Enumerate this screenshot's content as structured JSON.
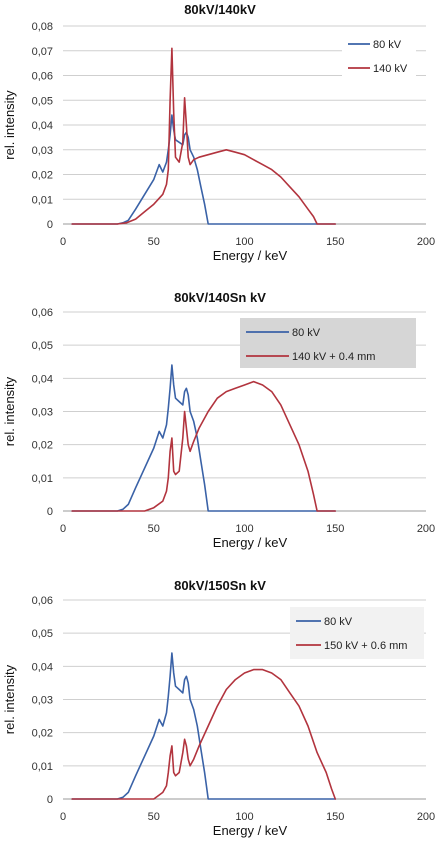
{
  "colors": {
    "series_80": "#3a62a7",
    "series_high": "#b2343e",
    "grid": "#cfcfcf"
  },
  "chart_data": [
    {
      "type": "line",
      "title": "80kV/140kV",
      "xlabel": "Energy / keV",
      "ylabel": "rel. intensity",
      "xlim": [
        0,
        200
      ],
      "ylim": [
        0,
        0.08
      ],
      "x_ticks": [
        "0",
        "50",
        "100",
        "150",
        "200"
      ],
      "y_ticks": [
        "0",
        "0,01",
        "0,02",
        "0,03",
        "0,04",
        "0,05",
        "0,06",
        "0,07",
        "0,08"
      ],
      "legend_position": "top-right",
      "legend_background": "#ffffff",
      "series": [
        {
          "name": "80 kV",
          "color": "#3a62a7",
          "x": [
            5,
            30,
            33,
            36,
            40,
            45,
            50,
            53,
            55,
            57,
            58,
            59,
            60,
            61,
            62,
            64,
            66,
            67,
            68,
            69,
            70,
            72,
            74,
            76,
            78,
            79,
            80,
            85,
            100,
            150
          ],
          "y": [
            0,
            0,
            0.0005,
            0.0015,
            0.006,
            0.012,
            0.018,
            0.024,
            0.021,
            0.025,
            0.03,
            0.036,
            0.044,
            0.038,
            0.034,
            0.033,
            0.032,
            0.036,
            0.037,
            0.035,
            0.03,
            0.027,
            0.022,
            0.015,
            0.008,
            0.004,
            0,
            0,
            0,
            0
          ]
        },
        {
          "name": "140 kV",
          "color": "#b2343e",
          "x": [
            5,
            30,
            35,
            40,
            45,
            50,
            55,
            57,
            58,
            59,
            60,
            61,
            62,
            64,
            66,
            67,
            68,
            69,
            70,
            72,
            75,
            80,
            85,
            90,
            95,
            100,
            105,
            110,
            115,
            120,
            125,
            130,
            135,
            138,
            140,
            145,
            150
          ],
          "y": [
            0,
            0,
            0.0005,
            0.002,
            0.005,
            0.008,
            0.012,
            0.016,
            0.022,
            0.05,
            0.071,
            0.045,
            0.027,
            0.025,
            0.033,
            0.051,
            0.04,
            0.027,
            0.024,
            0.026,
            0.027,
            0.028,
            0.029,
            0.03,
            0.029,
            0.028,
            0.026,
            0.024,
            0.022,
            0.019,
            0.015,
            0.011,
            0.006,
            0.003,
            0,
            0,
            0
          ]
        }
      ]
    },
    {
      "type": "line",
      "title": "80kV/140Sn kV",
      "xlabel": "Energy / keV",
      "ylabel": "rel. intensity",
      "xlim": [
        0,
        200
      ],
      "ylim": [
        0,
        0.06
      ],
      "x_ticks": [
        "0",
        "50",
        "100",
        "150",
        "200"
      ],
      "y_ticks": [
        "0",
        "0,01",
        "0,02",
        "0,03",
        "0,04",
        "0,05",
        "0,06"
      ],
      "legend_position": "top-right",
      "legend_background": "#d6d6d6",
      "series": [
        {
          "name": "80 kV",
          "color": "#3a62a7",
          "x": [
            5,
            30,
            33,
            36,
            40,
            45,
            50,
            53,
            55,
            57,
            58,
            59,
            60,
            61,
            62,
            64,
            66,
            67,
            68,
            69,
            70,
            72,
            74,
            76,
            78,
            79,
            80,
            85,
            100,
            150
          ],
          "y": [
            0,
            0,
            0.0005,
            0.002,
            0.007,
            0.013,
            0.019,
            0.024,
            0.022,
            0.026,
            0.031,
            0.037,
            0.044,
            0.038,
            0.034,
            0.033,
            0.032,
            0.036,
            0.037,
            0.035,
            0.03,
            0.027,
            0.022,
            0.015,
            0.008,
            0.004,
            0,
            0,
            0,
            0
          ]
        },
        {
          "name": "140 kV + 0.4 mm",
          "color": "#b2343e",
          "x": [
            5,
            45,
            50,
            55,
            57,
            58,
            59,
            60,
            61,
            62,
            64,
            66,
            67,
            68,
            69,
            70,
            72,
            75,
            80,
            85,
            90,
            95,
            100,
            105,
            110,
            115,
            120,
            125,
            130,
            135,
            138,
            140,
            145,
            150
          ],
          "y": [
            0,
            0,
            0.001,
            0.003,
            0.006,
            0.01,
            0.018,
            0.022,
            0.012,
            0.011,
            0.012,
            0.022,
            0.03,
            0.025,
            0.02,
            0.018,
            0.021,
            0.025,
            0.03,
            0.034,
            0.036,
            0.037,
            0.038,
            0.039,
            0.038,
            0.036,
            0.032,
            0.026,
            0.02,
            0.012,
            0.005,
            0,
            0,
            0
          ]
        }
      ]
    },
    {
      "type": "line",
      "title": "80kV/150Sn kV",
      "xlabel": "Energy / keV",
      "ylabel": "rel. intensity",
      "xlim": [
        0,
        200
      ],
      "ylim": [
        0,
        0.06
      ],
      "x_ticks": [
        "0",
        "50",
        "100",
        "150",
        "200"
      ],
      "y_ticks": [
        "0",
        "0,01",
        "0,02",
        "0,03",
        "0,04",
        "0,05",
        "0,06"
      ],
      "legend_position": "top-right",
      "legend_background": "#f2f2f2",
      "series": [
        {
          "name": "80 kV",
          "color": "#3a62a7",
          "x": [
            5,
            30,
            33,
            36,
            40,
            45,
            50,
            53,
            55,
            57,
            58,
            59,
            60,
            61,
            62,
            64,
            66,
            67,
            68,
            69,
            70,
            72,
            74,
            76,
            78,
            79,
            80,
            85,
            100,
            150
          ],
          "y": [
            0,
            0,
            0.0005,
            0.002,
            0.007,
            0.013,
            0.019,
            0.024,
            0.022,
            0.026,
            0.031,
            0.037,
            0.044,
            0.038,
            0.034,
            0.033,
            0.032,
            0.036,
            0.037,
            0.035,
            0.03,
            0.027,
            0.022,
            0.015,
            0.008,
            0.004,
            0,
            0,
            0,
            0
          ]
        },
        {
          "name": "150 kV + 0.6 mm",
          "color": "#b2343e",
          "x": [
            5,
            50,
            55,
            57,
            58,
            59,
            60,
            61,
            62,
            64,
            66,
            67,
            68,
            69,
            70,
            72,
            75,
            80,
            85,
            90,
            95,
            100,
            105,
            110,
            115,
            120,
            125,
            130,
            135,
            140,
            145,
            148,
            150
          ],
          "y": [
            0,
            0,
            0.002,
            0.004,
            0.008,
            0.013,
            0.016,
            0.008,
            0.007,
            0.008,
            0.014,
            0.018,
            0.016,
            0.012,
            0.01,
            0.012,
            0.016,
            0.022,
            0.028,
            0.033,
            0.036,
            0.038,
            0.039,
            0.039,
            0.038,
            0.036,
            0.032,
            0.028,
            0.022,
            0.014,
            0.008,
            0.003,
            0
          ]
        }
      ]
    }
  ]
}
